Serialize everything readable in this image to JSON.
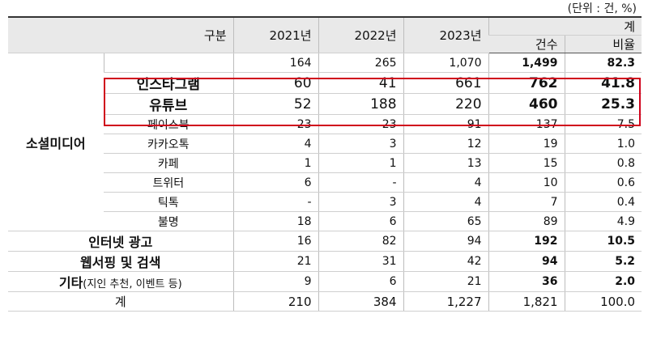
{
  "unit_note": "(단위 : 건, %)",
  "header": {
    "category": "구분",
    "y2021": "2021년",
    "y2022": "2022년",
    "y2023": "2023년",
    "total_group": "계",
    "count": "건수",
    "ratio": "비율"
  },
  "social": {
    "label": "소셜미디어",
    "subtotal": {
      "y2021": "164",
      "y2022": "265",
      "y2023": "1,070",
      "count": "1,499",
      "ratio": "82.3"
    },
    "rows": [
      {
        "name": "인스타그램",
        "y2021": "60",
        "y2022": "41",
        "y2023": "661",
        "count": "762",
        "ratio": "41.8"
      },
      {
        "name": "유튜브",
        "y2021": "52",
        "y2022": "188",
        "y2023": "220",
        "count": "460",
        "ratio": "25.3"
      },
      {
        "name": "페이스북",
        "y2021": "23",
        "y2022": "23",
        "y2023": "91",
        "count": "137",
        "ratio": "7.5"
      },
      {
        "name": "카카오톡",
        "y2021": "4",
        "y2022": "3",
        "y2023": "12",
        "count": "19",
        "ratio": "1.0"
      },
      {
        "name": "카페",
        "y2021": "1",
        "y2022": "1",
        "y2023": "13",
        "count": "15",
        "ratio": "0.8"
      },
      {
        "name": "트위터",
        "y2021": "6",
        "y2022": "-",
        "y2023": "4",
        "count": "10",
        "ratio": "0.6"
      },
      {
        "name": "틱톡",
        "y2021": "-",
        "y2022": "3",
        "y2023": "4",
        "count": "7",
        "ratio": "0.4"
      },
      {
        "name": "불명",
        "y2021": "18",
        "y2022": "6",
        "y2023": "65",
        "count": "89",
        "ratio": "4.9"
      }
    ]
  },
  "ads": {
    "name": "인터넷 광고",
    "y2021": "16",
    "y2022": "82",
    "y2023": "94",
    "count": "192",
    "ratio": "10.5"
  },
  "web": {
    "name": "웹서핑 및 검색",
    "y2021": "21",
    "y2022": "31",
    "y2023": "42",
    "count": "94",
    "ratio": "5.2"
  },
  "etc": {
    "name": "기타",
    "paren": "(지인 추천, 이벤트 등)",
    "y2021": "9",
    "y2022": "6",
    "y2023": "21",
    "count": "36",
    "ratio": "2.0"
  },
  "total": {
    "name": "계",
    "y2021": "210",
    "y2022": "384",
    "y2023": "1,227",
    "count": "1,821",
    "ratio": "100.0"
  },
  "highlight_color": "#d0021b"
}
